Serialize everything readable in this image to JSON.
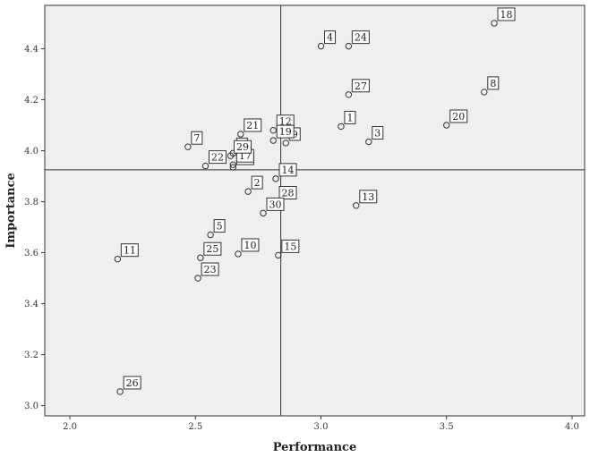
{
  "chart_data": {
    "type": "scatter",
    "xlabel": "Performance",
    "ylabel": "Importance",
    "xlim": [
      1.9,
      4.05
    ],
    "ylim": [
      2.96,
      4.57
    ],
    "xticks": [
      "2.0",
      "2.5",
      "3.0",
      "3.5",
      "4.0"
    ],
    "yticks": [
      "3.0",
      "3.2",
      "3.4",
      "3.6",
      "3.8",
      "4.0",
      "4.2",
      "4.4"
    ],
    "grid": false,
    "reference_lines": {
      "x": 2.84,
      "y": 3.925
    },
    "colors": {
      "plot_bg": "#efefef",
      "marker": "#333333",
      "frame": "#333333"
    },
    "points": [
      {
        "label": "1",
        "x": 3.08,
        "y": 4.095
      },
      {
        "label": "2",
        "x": 2.71,
        "y": 3.84
      },
      {
        "label": "3",
        "x": 3.19,
        "y": 4.035
      },
      {
        "label": "4",
        "x": 3.0,
        "y": 4.41
      },
      {
        "label": "5",
        "x": 2.56,
        "y": 3.67
      },
      {
        "label": "6",
        "x": 2.65,
        "y": 3.99
      },
      {
        "label": "7",
        "x": 2.47,
        "y": 4.015
      },
      {
        "label": "8",
        "x": 3.65,
        "y": 4.23
      },
      {
        "label": "9",
        "x": 2.86,
        "y": 4.03
      },
      {
        "label": "10",
        "x": 2.67,
        "y": 3.595
      },
      {
        "label": "11",
        "x": 2.19,
        "y": 3.575
      },
      {
        "label": "12",
        "x": 2.81,
        "y": 4.08
      },
      {
        "label": "13",
        "x": 3.14,
        "y": 3.785
      },
      {
        "label": "14",
        "x": 2.82,
        "y": 3.89
      },
      {
        "label": "15",
        "x": 2.83,
        "y": 3.59
      },
      {
        "label": "16",
        "x": 2.65,
        "y": 3.935
      },
      {
        "label": "17",
        "x": 2.65,
        "y": 3.945
      },
      {
        "label": "18",
        "x": 3.69,
        "y": 4.5
      },
      {
        "label": "19",
        "x": 2.81,
        "y": 4.04
      },
      {
        "label": "20",
        "x": 3.5,
        "y": 4.1
      },
      {
        "label": "21",
        "x": 2.68,
        "y": 4.065
      },
      {
        "label": "22",
        "x": 2.54,
        "y": 3.94
      },
      {
        "label": "23",
        "x": 2.51,
        "y": 3.5
      },
      {
        "label": "24",
        "x": 3.11,
        "y": 4.41
      },
      {
        "label": "25",
        "x": 2.52,
        "y": 3.58
      },
      {
        "label": "26",
        "x": 2.2,
        "y": 3.055
      },
      {
        "label": "27",
        "x": 3.11,
        "y": 4.22
      },
      {
        "label": "28",
        "x": 2.82,
        "y": 3.8
      },
      {
        "label": "29",
        "x": 2.64,
        "y": 3.98
      },
      {
        "label": "30",
        "x": 2.77,
        "y": 3.755
      }
    ]
  }
}
